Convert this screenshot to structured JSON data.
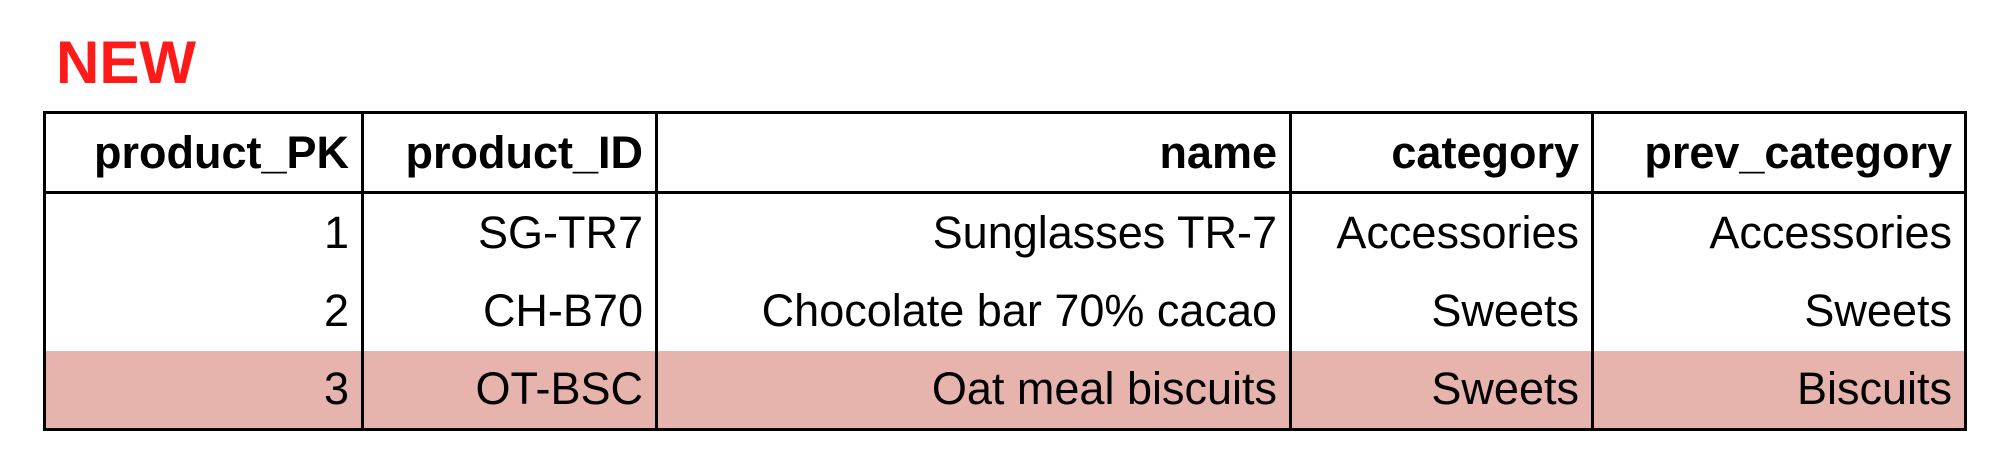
{
  "heading": "NEW",
  "colors": {
    "heading": "#ff1a1a",
    "highlight_row": "#e6b3ad",
    "border": "#000000"
  },
  "table": {
    "columns": [
      "product_PK",
      "product_ID",
      "name",
      "category",
      "prev_category"
    ],
    "rows": [
      [
        "1",
        "SG-TR7",
        "Sunglasses TR-7",
        "Accessories",
        "Accessories"
      ],
      [
        "2",
        "CH-B70",
        "Chocolate bar 70% cacao",
        "Sweets",
        "Sweets"
      ],
      [
        "3",
        "OT-BSC",
        "Oat meal biscuits",
        "Sweets",
        "Biscuits"
      ]
    ],
    "highlighted_row": 3
  }
}
